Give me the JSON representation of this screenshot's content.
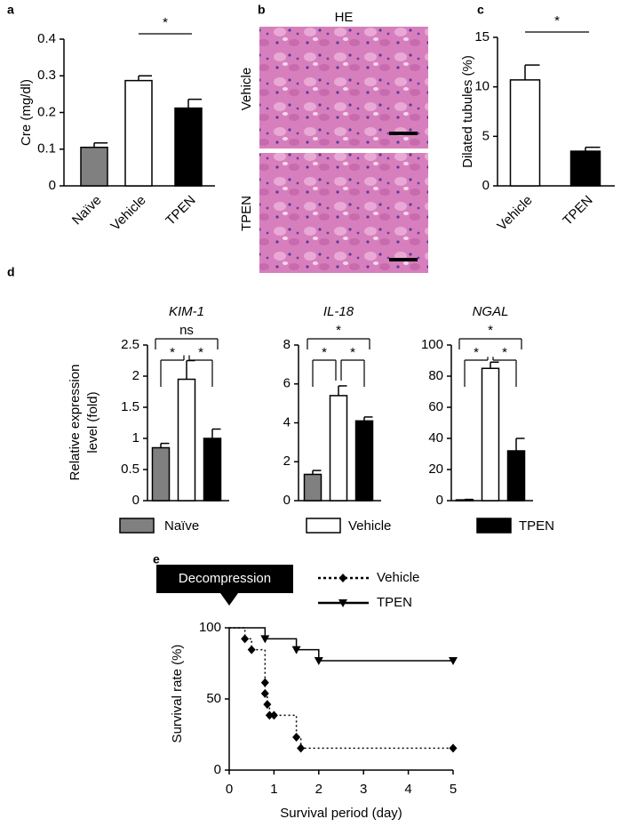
{
  "chart_data": [
    {
      "type": "bar",
      "panel": "a",
      "y_label": "Cre (mg/dl)",
      "categories": [
        "Naïve",
        "Vehicle",
        "TPEN"
      ],
      "values": [
        0.105,
        0.287,
        0.212
      ],
      "errors": [
        0.012,
        0.013,
        0.024
      ],
      "colors": [
        "#808080",
        "#ffffff",
        "#000000"
      ],
      "ylim": [
        0,
        0.4
      ],
      "yticks": [
        0,
        0.1,
        0.2,
        0.3,
        0.4
      ],
      "annotations": [
        "*"
      ]
    },
    {
      "type": "bar",
      "panel": "c",
      "y_label": "Dilated tubules (%)",
      "categories": [
        "Vehicle",
        "TPEN"
      ],
      "values": [
        10.7,
        3.5
      ],
      "errors": [
        1.5,
        0.4
      ],
      "colors": [
        "#ffffff",
        "#000000"
      ],
      "ylim": [
        0,
        15
      ],
      "yticks": [
        0,
        5,
        10,
        15
      ],
      "annotations": [
        "*"
      ]
    },
    {
      "type": "bar",
      "title": "KIM-1",
      "values": [
        0.85,
        1.95,
        1.0
      ],
      "errors": [
        0.07,
        0.3,
        0.15
      ],
      "colors": [
        "#808080",
        "#ffffff",
        "#000000"
      ],
      "ylim": [
        0,
        2.5
      ],
      "yticks": [
        0,
        0.5,
        1,
        1.5,
        2,
        2.5
      ],
      "annotations": [
        "ns",
        "*",
        "*"
      ]
    },
    {
      "type": "bar",
      "title": "IL-18",
      "values": [
        1.35,
        5.4,
        4.1
      ],
      "errors": [
        0.2,
        0.5,
        0.2
      ],
      "colors": [
        "#808080",
        "#ffffff",
        "#000000"
      ],
      "ylim": [
        0,
        8
      ],
      "yticks": [
        0,
        2,
        4,
        6,
        8
      ],
      "annotations": [
        "*",
        "*",
        "*"
      ]
    },
    {
      "type": "bar",
      "title": "NGAL",
      "values": [
        0.5,
        85,
        32
      ],
      "errors": [
        0.3,
        4,
        8
      ],
      "colors": [
        "#808080",
        "#ffffff",
        "#000000"
      ],
      "ylim": [
        0,
        100
      ],
      "yticks": [
        0,
        20,
        40,
        60,
        80,
        100
      ],
      "annotations": [
        "*",
        "*",
        "*"
      ]
    },
    {
      "type": "line",
      "panel": "e",
      "x_label": "Survival period (day)",
      "y_label": "Survival rate (%)",
      "annotation": "Decompression",
      "step": true,
      "series": [
        {
          "name": "Vehicle",
          "color": "#000000",
          "line_style": "dotted",
          "marker": "diamond",
          "x": [
            0.35,
            0.5,
            0.8,
            0.8,
            0.85,
            0.9,
            1.0,
            1.5,
            1.6,
            5
          ],
          "values": [
            92.3,
            84.6,
            61.5,
            53.8,
            46.2,
            38.5,
            38.5,
            23.1,
            15.4,
            15.4
          ]
        },
        {
          "name": "TPEN",
          "color": "#000000",
          "line_style": "solid",
          "marker": "triangle",
          "x": [
            0.8,
            1.5,
            2,
            5
          ],
          "values": [
            92.3,
            84.6,
            76.9,
            76.9
          ]
        }
      ],
      "xlim": [
        0,
        5
      ],
      "xticks": [
        0,
        1,
        2,
        3,
        4,
        5
      ],
      "ylim": [
        0,
        100
      ],
      "yticks": [
        0,
        50,
        100
      ]
    }
  ],
  "panel_b": {
    "panel": "b",
    "title": "HE",
    "rows": [
      "Vehicle",
      "TPEN"
    ]
  },
  "panel_d": {
    "panel": "d",
    "y_label": [
      "Relative expression",
      "level (fold)"
    ],
    "legend": [
      "Naïve",
      "Vehicle",
      "TPEN"
    ]
  }
}
